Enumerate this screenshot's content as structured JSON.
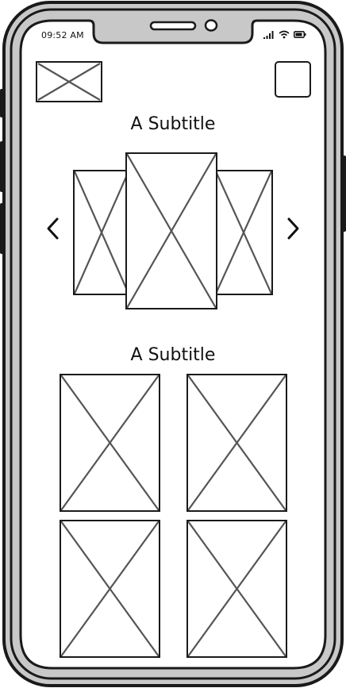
{
  "status_bar": {
    "time": "09:52 AM",
    "icons": [
      "signal-icon",
      "wifi-icon",
      "battery-icon"
    ]
  },
  "header": {
    "logo_icon": "image-placeholder-icon",
    "menu_button_icon": "square-button-icon"
  },
  "carousel": {
    "subtitle": "A Subtitle",
    "prev_icon": "chevron-left-icon",
    "next_icon": "chevron-right-icon",
    "slides": [
      "image-placeholder",
      "image-placeholder",
      "image-placeholder"
    ]
  },
  "gallery": {
    "subtitle": "A Subtitle",
    "items": [
      "image-placeholder",
      "image-placeholder",
      "image-placeholder",
      "image-placeholder"
    ]
  },
  "colors": {
    "stroke": "#1a1a1a",
    "frame_fill": "#c8c8c8",
    "cross": "#555555"
  }
}
